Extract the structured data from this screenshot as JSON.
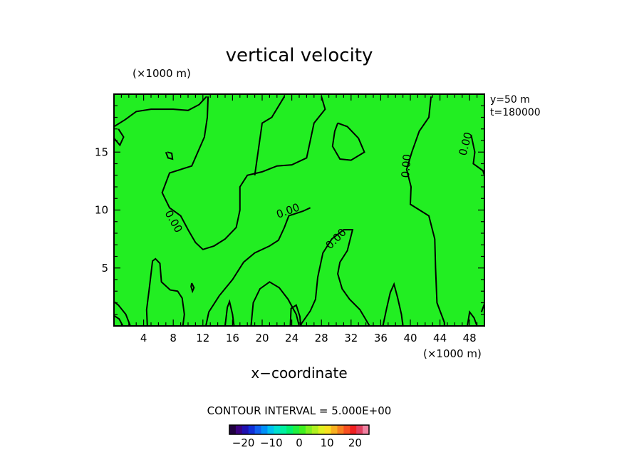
{
  "chart_data": {
    "type": "contour",
    "title": "vertical velocity",
    "xlabel": "x−coordinate",
    "x_unit": "(×1000 m)",
    "y_unit": "(×1000 m)",
    "xlim": [
      0,
      50
    ],
    "ylim": [
      0,
      20
    ],
    "x_ticks": [
      4,
      8,
      12,
      16,
      20,
      24,
      28,
      32,
      36,
      40,
      44,
      48
    ],
    "y_ticks": [
      5,
      10,
      15
    ],
    "side_info": [
      "y=50  m",
      "t=180000"
    ],
    "contour_interval_text": "CONTOUR INTERVAL = 5.000E+00",
    "contour_labels": [
      "0.00",
      "0.00",
      "0.00",
      "0.00",
      "0.00"
    ],
    "fill_color": "#22ee22",
    "colorbar": {
      "ticks": [
        "−20",
        "−10",
        "0",
        "10",
        "20"
      ],
      "range": [
        -25,
        25
      ],
      "colors": [
        "#200040",
        "#3a0080",
        "#2010b0",
        "#1030d8",
        "#1060f0",
        "#0090f8",
        "#00c0f0",
        "#00e0d0",
        "#00f0a0",
        "#00f070",
        "#20f040",
        "#40f020",
        "#80f020",
        "#b0f020",
        "#e0f020",
        "#f8e020",
        "#f8b020",
        "#f88020",
        "#f85020",
        "#f02020",
        "#e04060",
        "#f080a0"
      ]
    },
    "zero_contours_approx": [
      [
        [
          0,
          17.2
        ],
        [
          1.5,
          17.8
        ],
        [
          3,
          18.5
        ],
        [
          5,
          18.7
        ],
        [
          8,
          18.7
        ],
        [
          10,
          18.6
        ],
        [
          11.5,
          19.1
        ],
        [
          12.5,
          19.8
        ]
      ],
      [
        [
          0,
          16.2
        ],
        [
          0.8,
          15.6
        ],
        [
          1.3,
          16.3
        ],
        [
          0.6,
          17.0
        ]
      ],
      [
        [
          7.2,
          15.0
        ],
        [
          7.8,
          14.9
        ],
        [
          7.9,
          14.4
        ],
        [
          7.3,
          14.5
        ],
        [
          7.0,
          15.0
        ]
      ],
      [
        [
          12.7,
          19.8
        ],
        [
          12.6,
          18
        ],
        [
          12.2,
          16.3
        ],
        [
          10.5,
          13.8
        ],
        [
          7.5,
          13.2
        ],
        [
          6.5,
          11.5
        ],
        [
          7.5,
          10.2
        ],
        [
          9,
          9.5
        ],
        [
          10,
          8.3
        ],
        [
          11,
          7.2
        ],
        [
          12,
          6.6
        ],
        [
          13.5,
          6.9
        ],
        [
          15,
          7.5
        ],
        [
          16.5,
          8.5
        ],
        [
          17,
          10
        ],
        [
          17,
          12
        ],
        [
          18,
          13
        ],
        [
          20,
          13.3
        ],
        [
          22,
          13.8
        ],
        [
          24,
          13.9
        ],
        [
          26,
          14.5
        ],
        [
          26.5,
          16
        ],
        [
          27,
          17.5
        ],
        [
          28.5,
          18.7
        ],
        [
          28,
          19.8
        ]
      ],
      [
        [
          30.2,
          17.5
        ],
        [
          31.5,
          17.2
        ],
        [
          33,
          16.2
        ],
        [
          33.8,
          15
        ],
        [
          32,
          14.3
        ],
        [
          30.5,
          14.4
        ],
        [
          29.5,
          15.5
        ],
        [
          29.8,
          16.8
        ],
        [
          30.2,
          17.5
        ]
      ],
      [
        [
          23,
          19.8
        ],
        [
          21.3,
          18
        ],
        [
          20,
          17.5
        ],
        [
          19,
          13
        ]
      ],
      [
        [
          12.4,
          0
        ],
        [
          12.8,
          1.2
        ],
        [
          14.2,
          2.6
        ],
        [
          16,
          4
        ],
        [
          17.5,
          5.5
        ],
        [
          19,
          6.3
        ],
        [
          21,
          6.9
        ],
        [
          22.2,
          7.4
        ],
        [
          23,
          8.5
        ],
        [
          23.6,
          9.5
        ],
        [
          25.5,
          9.9
        ],
        [
          26.5,
          10.2
        ]
      ],
      [
        [
          42.8,
          19.8
        ],
        [
          42.5,
          18
        ],
        [
          41.2,
          16.8
        ],
        [
          40.2,
          15
        ],
        [
          39.5,
          13.5
        ],
        [
          40.1,
          12
        ],
        [
          40,
          10.5
        ],
        [
          42.5,
          9.5
        ],
        [
          43.3,
          7.5
        ],
        [
          43.4,
          5
        ],
        [
          43.6,
          2
        ],
        [
          44.6,
          0.3
        ],
        [
          44.6,
          0
        ]
      ],
      [
        [
          48.2,
          16.5
        ],
        [
          48.7,
          15
        ],
        [
          48.5,
          14
        ],
        [
          49.8,
          13.4
        ],
        [
          50,
          13
        ]
      ],
      [
        [
          34.5,
          0
        ],
        [
          33.2,
          1.4
        ],
        [
          31.8,
          2.3
        ],
        [
          30.8,
          3.2
        ],
        [
          30.2,
          4.5
        ],
        [
          30.5,
          5.5
        ],
        [
          31.5,
          6.5
        ],
        [
          32.2,
          8.3
        ],
        [
          31,
          8.3
        ],
        [
          29.4,
          7.5
        ],
        [
          28.2,
          6.3
        ],
        [
          27.5,
          4.2
        ],
        [
          27.2,
          2.3
        ],
        [
          26.5,
          1.3
        ],
        [
          25.3,
          0.2
        ],
        [
          25.2,
          0
        ]
      ],
      [
        [
          2.2,
          0
        ],
        [
          1.6,
          1.0
        ],
        [
          0.6,
          1.8
        ],
        [
          0,
          2.1
        ]
      ],
      [
        [
          4.5,
          0
        ],
        [
          4.4,
          1.4
        ],
        [
          4.8,
          3.4
        ],
        [
          5.2,
          5.6
        ],
        [
          5.6,
          5.8
        ],
        [
          6.2,
          5.4
        ],
        [
          6.4,
          3.8
        ],
        [
          7.6,
          3.1
        ],
        [
          8.6,
          3.0
        ],
        [
          9.2,
          2.4
        ],
        [
          9.5,
          1.0
        ],
        [
          9.3,
          0
        ]
      ],
      [
        [
          10.5,
          3.7
        ],
        [
          10.8,
          3.3
        ],
        [
          10.6,
          3.0
        ],
        [
          10.4,
          3.4
        ],
        [
          10.5,
          3.7
        ]
      ],
      [
        [
          18.5,
          0
        ],
        [
          18.8,
          2.0
        ],
        [
          19.7,
          3.2
        ],
        [
          21,
          3.8
        ],
        [
          22.3,
          3.3
        ],
        [
          23.5,
          2.3
        ],
        [
          24.6,
          1.0
        ],
        [
          25.0,
          0
        ]
      ],
      [
        [
          36.3,
          0
        ],
        [
          36.8,
          1.5
        ],
        [
          37.3,
          2.9
        ],
        [
          37.8,
          3.6
        ],
        [
          38.3,
          2.4
        ],
        [
          38.8,
          1.0
        ],
        [
          39,
          0
        ]
      ],
      [
        [
          15,
          0
        ],
        [
          15.3,
          1.6
        ],
        [
          15.6,
          2.1
        ],
        [
          16,
          1.0
        ],
        [
          16.2,
          0
        ]
      ],
      [
        [
          23.8,
          0
        ],
        [
          23.9,
          1.5
        ],
        [
          24.6,
          1.8
        ],
        [
          25.1,
          0.8
        ],
        [
          25.2,
          0
        ]
      ],
      [
        [
          47.7,
          0
        ],
        [
          48,
          1.2
        ],
        [
          48.6,
          0.7
        ],
        [
          49,
          0
        ]
      ],
      [
        [
          49.6,
          1.2
        ],
        [
          50,
          1.9
        ]
      ],
      [
        [
          0,
          0.9
        ],
        [
          0.7,
          0.6
        ],
        [
          1.2,
          0
        ]
      ]
    ]
  }
}
